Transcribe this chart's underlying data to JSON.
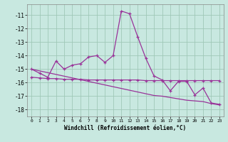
{
  "xlabel": "Windchill (Refroidissement éolien,°C)",
  "bg_color": "#c8e8e0",
  "grid_color": "#a0c8b8",
  "line_color": "#993399",
  "hours": [
    0,
    1,
    2,
    3,
    4,
    5,
    6,
    7,
    8,
    9,
    10,
    11,
    12,
    13,
    14,
    15,
    16,
    17,
    18,
    19,
    20,
    21,
    22,
    23
  ],
  "line1": [
    -15.0,
    -15.3,
    -15.6,
    -14.4,
    -15.0,
    -14.7,
    -14.6,
    -14.1,
    -14.0,
    -14.5,
    -14.0,
    -10.7,
    -10.9,
    -12.6,
    -14.2,
    -15.5,
    -15.8,
    -16.6,
    -15.9,
    -15.9,
    -16.9,
    -16.4,
    -17.5,
    -17.6
  ],
  "line2": [
    -15.6,
    -15.65,
    -15.7,
    -15.7,
    -15.75,
    -15.75,
    -15.75,
    -15.8,
    -15.8,
    -15.8,
    -15.8,
    -15.8,
    -15.8,
    -15.8,
    -15.85,
    -15.85,
    -15.85,
    -15.85,
    -15.85,
    -15.85,
    -15.85,
    -15.85,
    -15.85,
    -15.85
  ],
  "line3": [
    -15.0,
    -15.13,
    -15.26,
    -15.39,
    -15.52,
    -15.65,
    -15.78,
    -15.91,
    -16.04,
    -16.17,
    -16.3,
    -16.43,
    -16.56,
    -16.69,
    -16.82,
    -16.95,
    -17.0,
    -17.1,
    -17.2,
    -17.3,
    -17.35,
    -17.4,
    -17.55,
    -17.65
  ],
  "ylim": [
    -18.5,
    -10.2
  ],
  "yticks": [
    -18,
    -17,
    -16,
    -15,
    -14,
    -13,
    -12,
    -11
  ],
  "xlim": [
    -0.5,
    23.5
  ],
  "xticks": [
    0,
    1,
    2,
    3,
    4,
    5,
    6,
    7,
    8,
    9,
    10,
    11,
    12,
    13,
    14,
    15,
    16,
    17,
    18,
    19,
    20,
    21,
    22,
    23
  ]
}
